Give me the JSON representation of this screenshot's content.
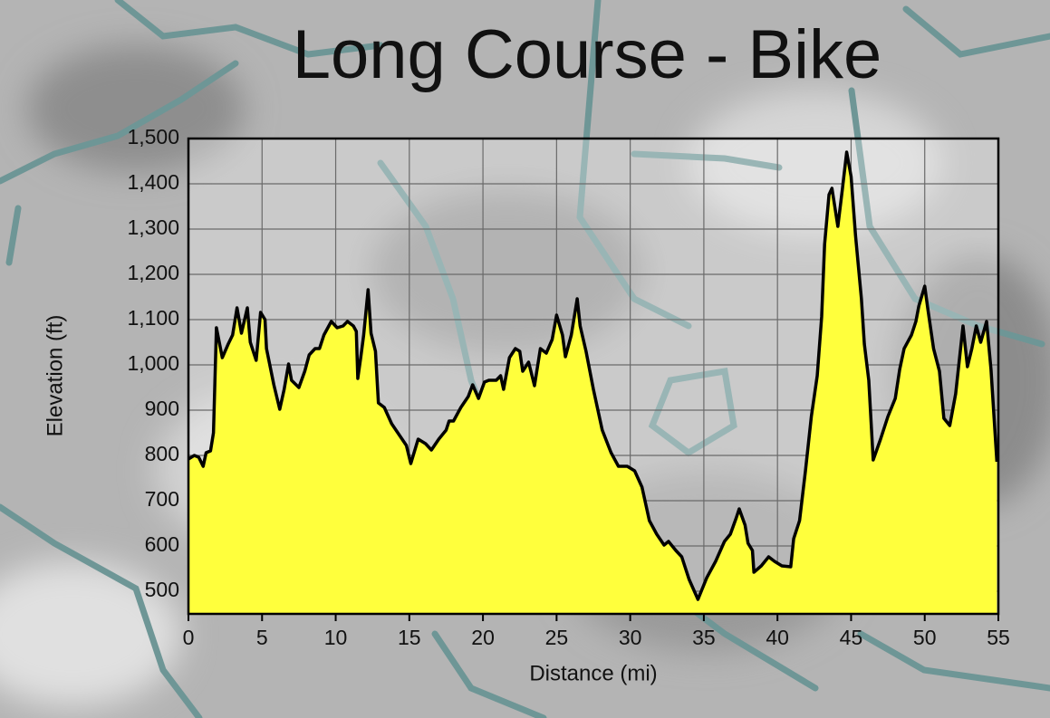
{
  "chart_data": {
    "type": "area",
    "title": "Long Course - Bike",
    "x_label": "Distance (mi)",
    "y_label": "Elevation (ft)",
    "color": "#ffff3c",
    "line_color": "#000000",
    "grid": true,
    "xlim": [
      0,
      55
    ],
    "ylim": [
      450,
      1500
    ],
    "xticks": [
      0,
      5,
      10,
      15,
      20,
      25,
      30,
      35,
      40,
      45,
      50,
      55
    ],
    "yticks": [
      500,
      600,
      700,
      800,
      900,
      {
        "value": 1000,
        "label": "1,000"
      },
      {
        "value": 1100,
        "label": "1,100"
      },
      {
        "value": 1200,
        "label": "1,200"
      },
      {
        "value": 1300,
        "label": "1,300"
      },
      {
        "value": 1400,
        "label": "1,400"
      },
      {
        "value": 1500,
        "label": "1,500"
      }
    ],
    "x": [
      0,
      0.4,
      0.7,
      1.0,
      1.2,
      1.5,
      1.7,
      1.9,
      2.3,
      2.7,
      3.0,
      3.3,
      3.6,
      4.0,
      4.2,
      4.6,
      4.9,
      5.2,
      5.3,
      5.8,
      6.2,
      6.5,
      6.8,
      7.0,
      7.5,
      7.9,
      8.2,
      8.6,
      8.9,
      9.2,
      9.7,
      10.1,
      10.5,
      10.8,
      11.2,
      11.4,
      11.5,
      11.7,
      11.9,
      12.2,
      12.4,
      12.7,
      12.9,
      13.3,
      13.8,
      14.3,
      14.8,
      15.1,
      15.6,
      16.1,
      16.5,
      17.0,
      17.5,
      17.7,
      18.0,
      18.5,
      19.0,
      19.3,
      19.7,
      20.1,
      20.4,
      20.9,
      21.2,
      21.4,
      21.8,
      22.2,
      22.5,
      22.7,
      23.1,
      23.5,
      23.9,
      24.3,
      24.7,
      25.0,
      25.4,
      25.6,
      26.0,
      26.4,
      26.6,
      27.0,
      27.5,
      28.1,
      28.7,
      29.2,
      29.8,
      30.3,
      30.8,
      31.3,
      31.8,
      32.3,
      32.6,
      33.1,
      33.5,
      34.0,
      34.6,
      35.2,
      35.8,
      36.4,
      36.8,
      37.2,
      37.4,
      37.8,
      38.0,
      38.3,
      38.4,
      38.9,
      39.4,
      39.8,
      40.3,
      40.9,
      41.1,
      41.5,
      41.9,
      42.3,
      42.7,
      43.0,
      43.2,
      43.5,
      43.7,
      44.1,
      44.4,
      44.7,
      45.0,
      45.3,
      45.7,
      45.9,
      46.2,
      46.5,
      47.0,
      47.5,
      48.0,
      48.3,
      48.6,
      49.1,
      49.4,
      49.6,
      50.0,
      50.2,
      50.6,
      51.0,
      51.3,
      51.7,
      52.1,
      52.3,
      52.6,
      52.9,
      53.2,
      53.5,
      53.8,
      54.2,
      54.5,
      54.9
    ],
    "values": [
      792,
      800,
      796,
      776,
      806,
      810,
      850,
      1082,
      1016,
      1046,
      1066,
      1126,
      1070,
      1126,
      1050,
      1010,
      1116,
      1100,
      1036,
      956,
      902,
      946,
      1002,
      966,
      950,
      986,
      1022,
      1036,
      1036,
      1066,
      1096,
      1082,
      1086,
      1096,
      1086,
      1074,
      970,
      1016,
      1066,
      1166,
      1070,
      1030,
      916,
      906,
      870,
      846,
      822,
      782,
      836,
      826,
      812,
      836,
      856,
      876,
      876,
      906,
      930,
      956,
      926,
      962,
      966,
      966,
      976,
      946,
      1016,
      1036,
      1030,
      986,
      1006,
      954,
      1036,
      1026,
      1056,
      1110,
      1066,
      1018,
      1066,
      1146,
      1086,
      1030,
      946,
      856,
      806,
      776,
      776,
      766,
      730,
      656,
      626,
      602,
      610,
      590,
      576,
      526,
      482,
      530,
      566,
      610,
      626,
      662,
      682,
      646,
      606,
      590,
      542,
      556,
      576,
      566,
      556,
      554,
      616,
      656,
      766,
      886,
      976,
      1106,
      1266,
      1376,
      1390,
      1306,
      1386,
      1470,
      1416,
      1286,
      1146,
      1046,
      966,
      790,
      836,
      886,
      926,
      990,
      1036,
      1066,
      1096,
      1130,
      1174,
      1126,
      1036,
      986,
      882,
      866,
      936,
      996,
      1086,
      996,
      1036,
      1086,
      1050,
      1096,
      990,
      786
    ]
  }
}
